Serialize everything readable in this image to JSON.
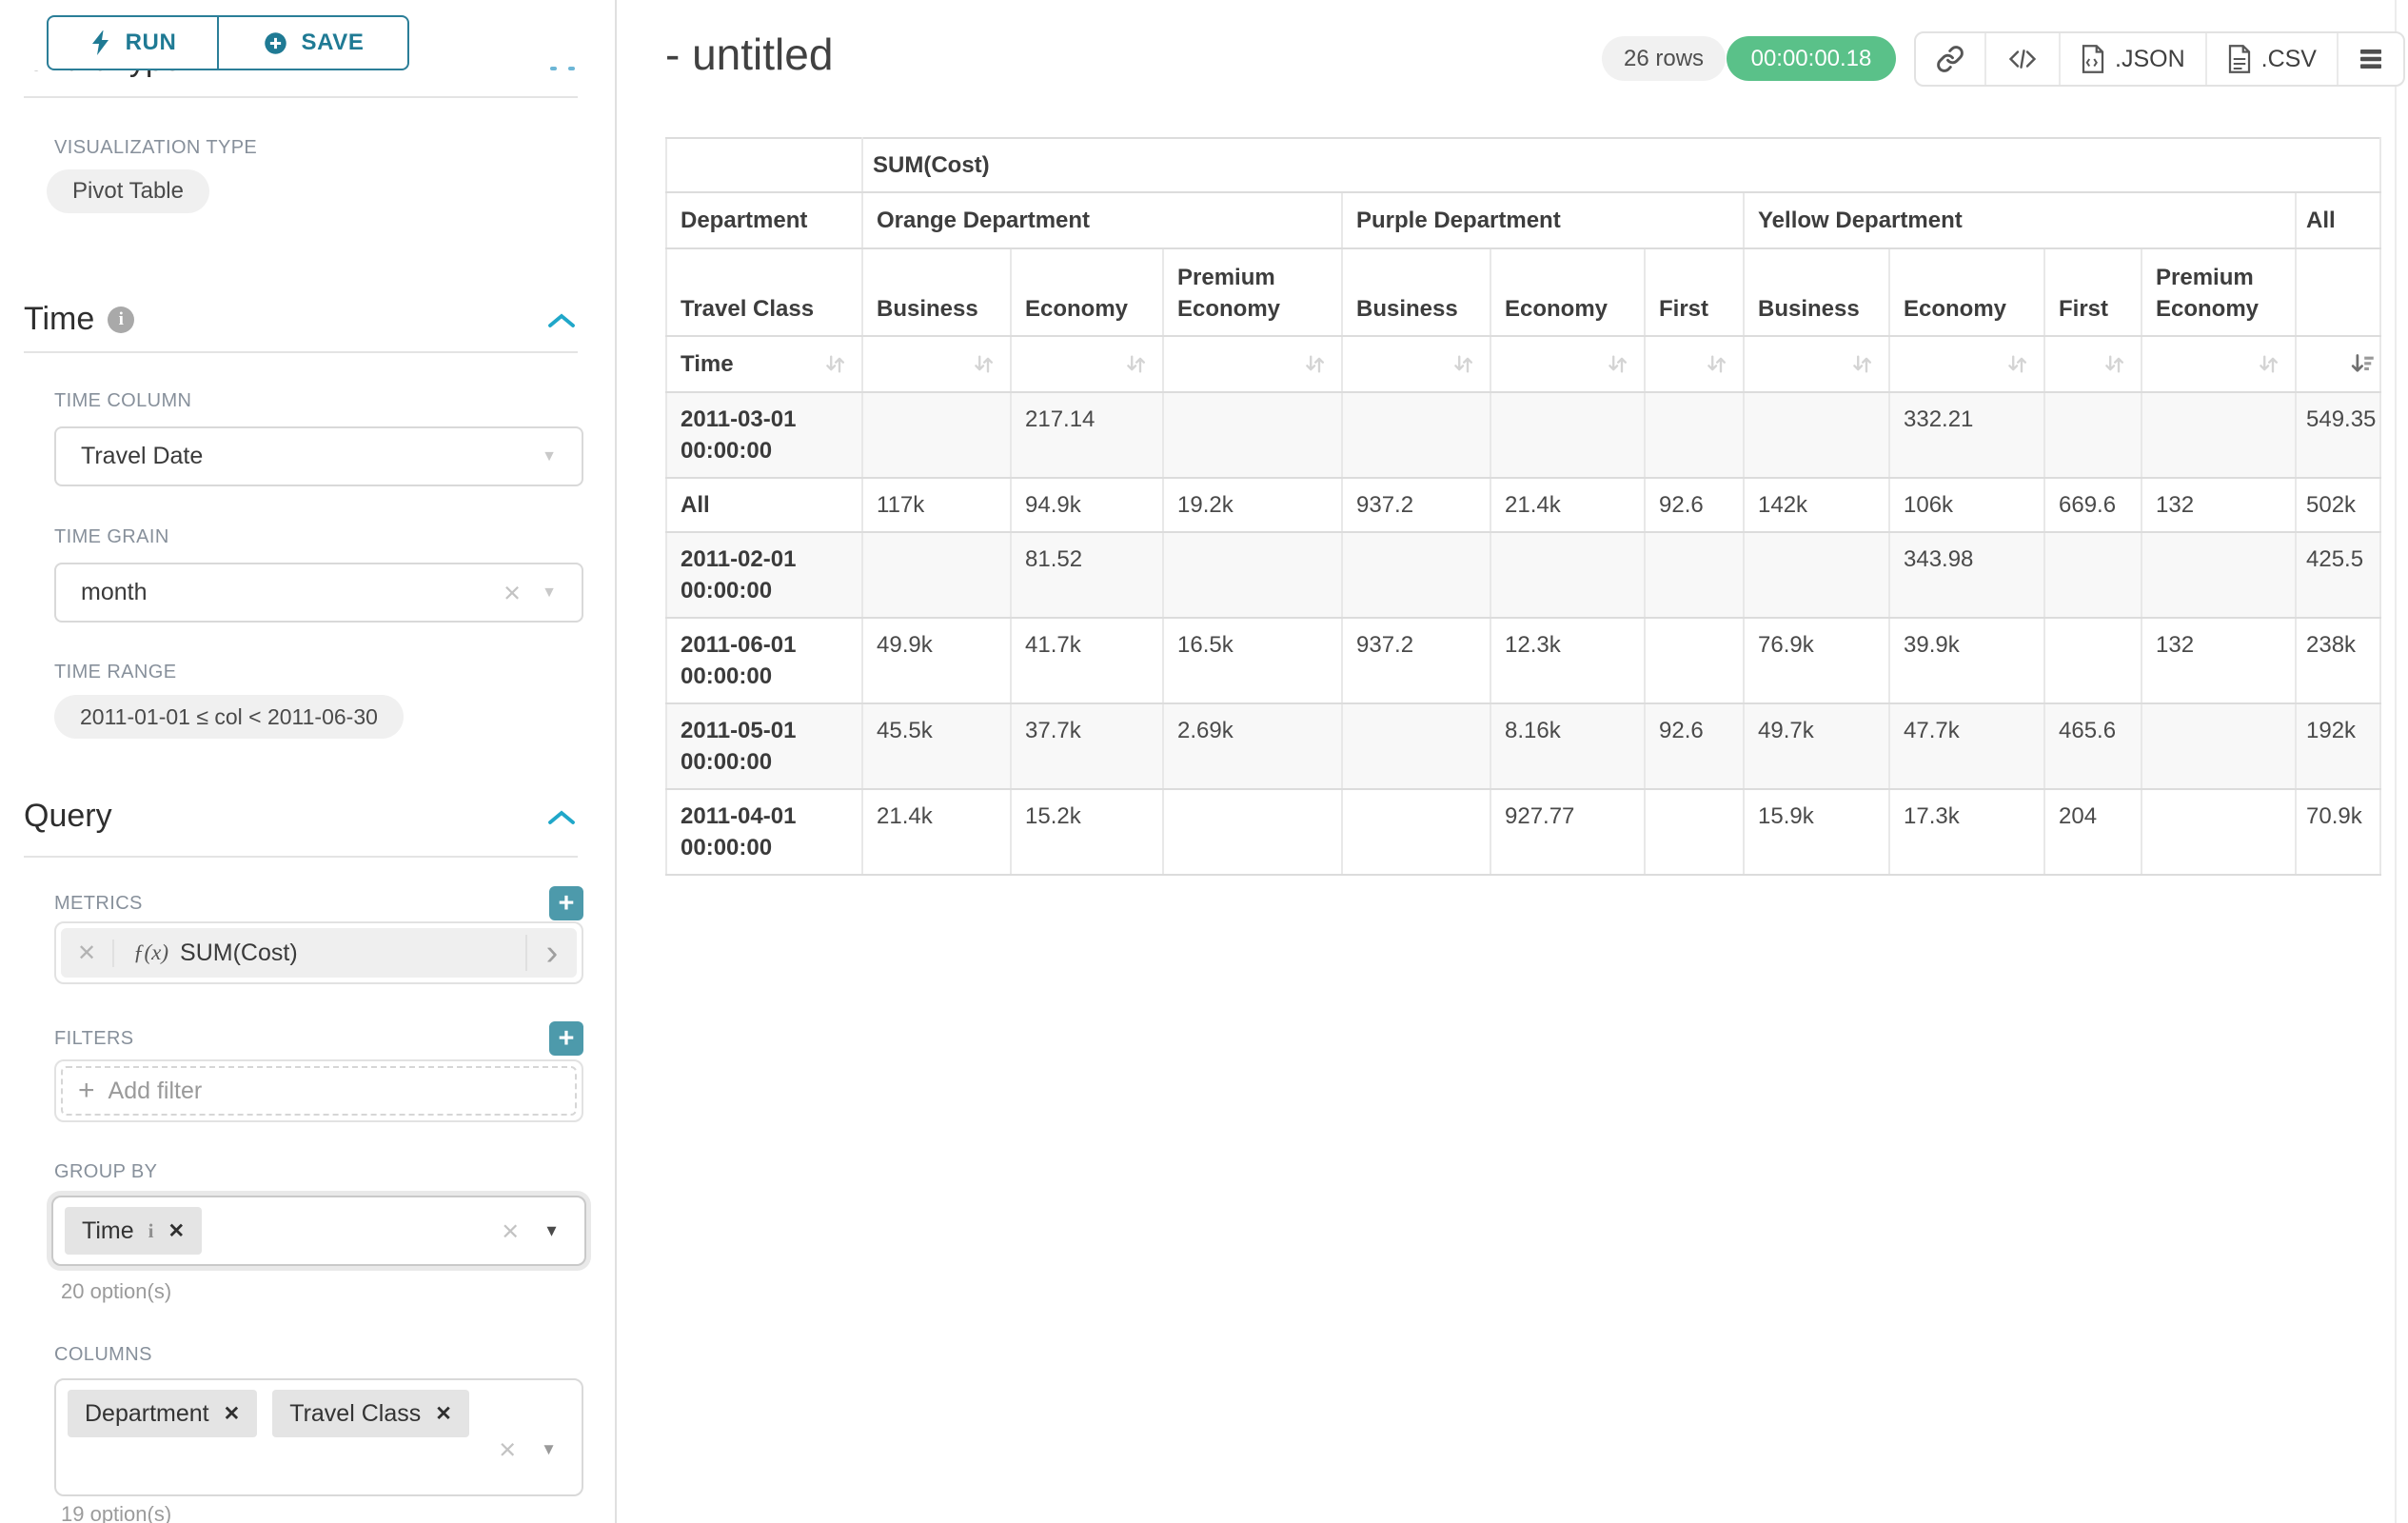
{
  "sidebar": {
    "run_button": "RUN",
    "save_button": "SAVE",
    "chart_type_heading": "Chart Type",
    "visualization_type_label": "VISUALIZATION TYPE",
    "visualization_type_value": "Pivot Table",
    "time": {
      "heading": "Time",
      "time_column_label": "TIME COLUMN",
      "time_column_value": "Travel Date",
      "time_grain_label": "TIME GRAIN",
      "time_grain_value": "month",
      "time_range_label": "TIME RANGE",
      "time_range_value": "2011-01-01 ≤ col < 2011-06-30"
    },
    "query": {
      "heading": "Query",
      "metrics_label": "METRICS",
      "metric_fx": "ƒ(x)",
      "metric_name": "SUM(Cost)",
      "filters_label": "FILTERS",
      "add_filter_placeholder": "Add filter",
      "group_by_label": "GROUP BY",
      "group_by_values": [
        {
          "label": "Time",
          "has_info": true
        }
      ],
      "group_by_hint": "20 option(s)",
      "columns_label": "COLUMNS",
      "columns_values": [
        {
          "label": "Department",
          "has_info": false
        },
        {
          "label": "Travel Class",
          "has_info": false
        }
      ],
      "columns_hint": "19 option(s)"
    }
  },
  "main": {
    "title": "- untitled",
    "row_count_badge": "26 rows",
    "query_timer": "00:00:00.18",
    "export_json_label": ".JSON",
    "export_csv_label": ".CSV"
  },
  "icons": {
    "plus": "+",
    "clear": "×",
    "chip_remove": "✕",
    "caret_down": "▼",
    "chevron_right": "›",
    "code": "</>"
  },
  "colors": {
    "accent_teal": "#1f7a94",
    "chevron_blue": "#20a7c9",
    "success_green": "#5ac189",
    "add_button_teal": "#4d9aab"
  },
  "pivot_table": {
    "metric_header": "SUM(Cost)",
    "column_dimension_label": "Department",
    "column_subdimension_label": "Travel Class",
    "row_dimension_label": "Time",
    "sort": {
      "column": "All",
      "direction": "descending"
    },
    "column_groups": [
      {
        "label": "Orange Department",
        "columns": [
          "Business",
          "Economy",
          "Premium Economy"
        ]
      },
      {
        "label": "Purple Department",
        "columns": [
          "Business",
          "Economy",
          "First"
        ]
      },
      {
        "label": "Yellow Department",
        "columns": [
          "Business",
          "Economy",
          "First",
          "Premium Economy"
        ]
      },
      {
        "label": "All",
        "columns": [
          ""
        ]
      }
    ],
    "rows": [
      {
        "label": "2011-03-01 00:00:00",
        "values": [
          "",
          "217.14",
          "",
          "",
          "",
          "",
          "",
          "332.21",
          "",
          "",
          "549.35"
        ]
      },
      {
        "label": "All",
        "values": [
          "117k",
          "94.9k",
          "19.2k",
          "937.2",
          "21.4k",
          "92.6",
          "142k",
          "106k",
          "669.6",
          "132",
          "502k"
        ]
      },
      {
        "label": "2011-02-01 00:00:00",
        "values": [
          "",
          "81.52",
          "",
          "",
          "",
          "",
          "",
          "343.98",
          "",
          "",
          "425.5"
        ]
      },
      {
        "label": "2011-06-01 00:00:00",
        "values": [
          "49.9k",
          "41.7k",
          "16.5k",
          "937.2",
          "12.3k",
          "",
          "76.9k",
          "39.9k",
          "",
          "132",
          "238k"
        ]
      },
      {
        "label": "2011-05-01 00:00:00",
        "values": [
          "45.5k",
          "37.7k",
          "2.69k",
          "",
          "8.16k",
          "92.6",
          "49.7k",
          "47.7k",
          "465.6",
          "",
          "192k"
        ]
      },
      {
        "label": "2011-04-01 00:00:00",
        "values": [
          "21.4k",
          "15.2k",
          "",
          "",
          "927.77",
          "",
          "15.9k",
          "17.3k",
          "204",
          "",
          "70.9k"
        ]
      }
    ]
  }
}
